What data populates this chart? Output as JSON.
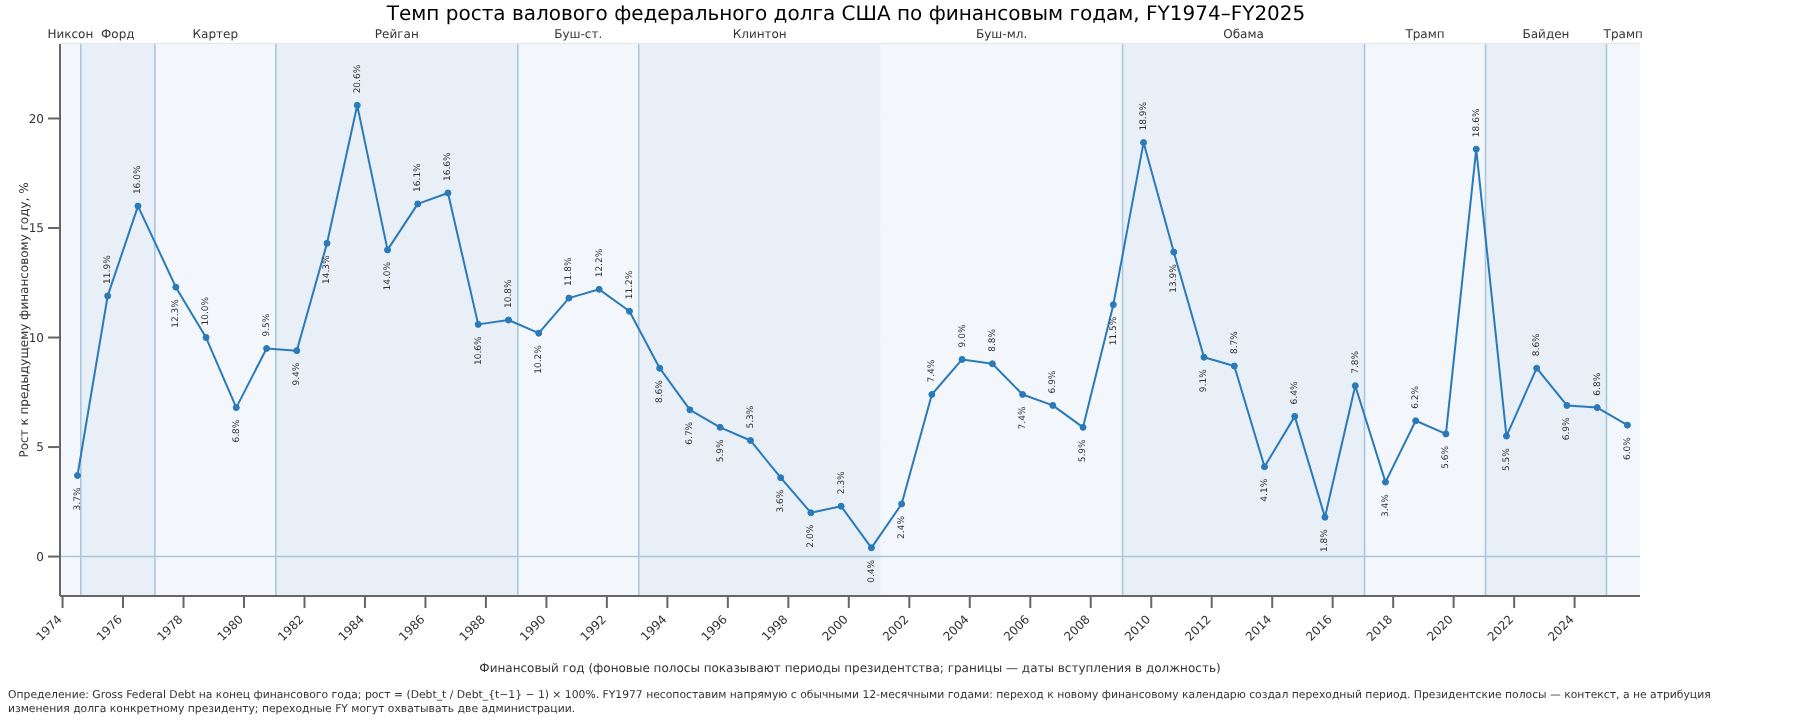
{
  "chart_data": {
    "type": "line",
    "title": "Темп роста валового федерального долга США по финансовым годам, FY1974–FY2025",
    "xlabel": "Финансовый год (фоновые полосы показывают периоды президентства; границы — даты вступления в должность)",
    "ylabel": "Рост к предыдущему финансовому году, %",
    "x": [
      "1974-06-30",
      "1975-06-30",
      "1976-06-30",
      "1977-09-30",
      "1978-09-30",
      "1979-09-30",
      "1980-09-30",
      "1981-09-30",
      "1982-09-30",
      "1983-09-30",
      "1984-09-30",
      "1985-09-30",
      "1986-09-30",
      "1987-09-30",
      "1988-09-30",
      "1989-09-30",
      "1990-09-30",
      "1991-09-30",
      "1992-09-30",
      "1993-09-30",
      "1994-09-30",
      "1995-09-30",
      "1996-09-30",
      "1997-09-30",
      "1998-09-30",
      "1999-09-30",
      "2000-09-30",
      "2001-09-30",
      "2002-09-30",
      "2003-09-30",
      "2004-09-30",
      "2005-09-30",
      "2006-09-30",
      "2007-09-30",
      "2008-09-30",
      "2009-09-30",
      "2010-09-30",
      "2011-09-30",
      "2012-09-30",
      "2013-09-30",
      "2014-09-30",
      "2015-09-30",
      "2016-09-30",
      "2017-09-30",
      "2018-09-30",
      "2019-09-30",
      "2020-09-30",
      "2021-09-30",
      "2022-09-30",
      "2023-09-30",
      "2024-09-30",
      "2025-09-30"
    ],
    "series": [
      {
        "color": "#2a7ab9",
        "values": [
          3.7,
          11.9,
          16.0,
          12.3,
          10.0,
          6.8,
          9.5,
          9.4,
          14.3,
          20.6,
          14.0,
          16.1,
          16.6,
          10.6,
          10.8,
          10.2,
          11.8,
          12.2,
          11.2,
          8.6,
          6.7,
          5.9,
          5.3,
          3.6,
          2.0,
          2.3,
          0.4,
          2.4,
          7.4,
          9.0,
          8.8,
          7.4,
          6.9,
          5.9,
          11.5,
          18.9,
          13.9,
          9.1,
          8.7,
          4.1,
          6.4,
          1.8,
          7.8,
          3.4,
          6.2,
          5.6,
          18.6,
          5.5,
          8.6,
          6.9,
          6.8,
          6.0
        ],
        "value_labels": [
          "3.7%",
          "11.9%",
          "16.0%",
          "12.3%",
          "10.0%",
          "6.8%",
          "9.5%",
          "9.4%",
          "14.3%",
          "20.6%",
          "14.0%",
          "16.1%",
          "16.6%",
          "10.6%",
          "10.8%",
          "10.2%",
          "11.8%",
          "12.2%",
          "11.2%",
          "8.6%",
          "6.7%",
          "5.9%",
          "5.3%",
          "3.6%",
          "2.0%",
          "2.3%",
          "0.4%",
          "2.4%",
          "7.4%",
          "9.0%",
          "8.8%",
          "7.4%",
          "6.9%",
          "5.9%",
          "11.5%",
          "18.9%",
          "13.9%",
          "9.1%",
          "8.7%",
          "4.1%",
          "6.4%",
          "1.8%",
          "7.8%",
          "3.4%",
          "6.2%",
          "5.6%",
          "18.6%",
          "5.5%",
          "8.6%",
          "6.9%",
          "6.8%",
          "6.0%"
        ]
      }
    ],
    "xlim": [
      "1973-12-01",
      "2026-03-01"
    ],
    "xticks": [
      "1974",
      "1976",
      "1978",
      "1980",
      "1982",
      "1984",
      "1986",
      "1988",
      "1990",
      "1992",
      "1994",
      "1996",
      "1998",
      "2000",
      "2002",
      "2004",
      "2006",
      "2008",
      "2010",
      "2012",
      "2014",
      "2016",
      "2018",
      "2020",
      "2022",
      "2024"
    ],
    "ylim": [
      -1.8,
      23.4
    ],
    "yticks": [
      0,
      5,
      10,
      15,
      20
    ],
    "grid": "y",
    "marker": "circle",
    "line_style": "solid",
    "bands": [
      {
        "axis": "x",
        "from": "1973-12-01",
        "to": "1974-08-09",
        "label": "Никсон",
        "color": "#f3f7fb"
      },
      {
        "axis": "x",
        "from": "1974-08-09",
        "to": "1977-01-20",
        "label": "Форд",
        "color": "#e8eff7"
      },
      {
        "axis": "x",
        "from": "1977-01-20",
        "to": "1981-01-20",
        "label": "Картер",
        "color": "#f3f7fb"
      },
      {
        "axis": "x",
        "from": "1981-01-20",
        "to": "1989-01-20",
        "label": "Рейган",
        "color": "#e8eff7"
      },
      {
        "axis": "x",
        "from": "1989-01-20",
        "to": "1993-01-20",
        "label": "Буш-ст.",
        "color": "#f3f7fb"
      },
      {
        "axis": "x",
        "from": "1993-01-20",
        "to": "2001-01-20",
        "label": "Клинтон",
        "color": "#e8eff7"
      },
      {
        "axis": "x",
        "from": "2001-01-20",
        "to": "2009-01-20",
        "label": "Буш-мл.",
        "color": "#f3f7fb"
      },
      {
        "axis": "x",
        "from": "2009-01-20",
        "to": "2017-01-20",
        "label": "Обама",
        "color": "#e8eff7"
      },
      {
        "axis": "x",
        "from": "2017-01-20",
        "to": "2021-01-20",
        "label": "Трамп",
        "color": "#f3f7fb"
      },
      {
        "axis": "x",
        "from": "2021-01-20",
        "to": "2025-01-20",
        "label": "Байден",
        "color": "#e8eff7"
      },
      {
        "axis": "x",
        "from": "2025-01-20",
        "to": "2026-03-01",
        "label": "Трамп",
        "color": "#f3f7fb"
      }
    ],
    "ref_lines": [
      {
        "axis": "y",
        "value": 0,
        "color": "#a9c8e0"
      },
      {
        "axis": "x",
        "value": "1974-08-09",
        "color": "#a9c8e0"
      },
      {
        "axis": "x",
        "value": "1977-01-20",
        "color": "#a9c8e0"
      },
      {
        "axis": "x",
        "value": "1981-01-20",
        "color": "#a9c8e0"
      },
      {
        "axis": "x",
        "value": "1989-01-20",
        "color": "#a9c8e0"
      },
      {
        "axis": "x",
        "value": "1993-01-20",
        "color": "#a9c8e0"
      },
      {
        "axis": "x",
        "value": "2009-01-20",
        "color": "#a9c8e0"
      },
      {
        "axis": "x",
        "value": "2017-01-20",
        "color": "#a9c8e0"
      },
      {
        "axis": "x",
        "value": "2021-01-20",
        "color": "#a9c8e0"
      },
      {
        "axis": "x",
        "value": "2025-01-20",
        "color": "#a9c8e0"
      }
    ],
    "annotations": [
      "Определение: Gross Federal Debt на конец финансового года; рост = (Debt_t / Debt_{t−1} − 1) × 100%. FY1977 несопоставим напрямую с обычными 12-месячными годами: переход к новому финансовому календарю создал переходный период. Президентские полосы — контекст, а не атрибуция изменения долга конкретному президенту; переходные FY могут охватывать две администрации."
    ]
  }
}
